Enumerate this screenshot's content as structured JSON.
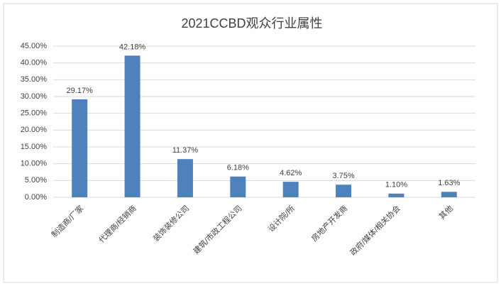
{
  "chart_data": {
    "type": "bar",
    "title": "2021CCBD观众行业属性",
    "categories": [
      "制造商/厂家",
      "代理商/经销商",
      "装饰装修公司",
      "建筑/市政工程公司",
      "设计院/所",
      "房地产开发商",
      "政府/媒体/相关协会",
      "其他"
    ],
    "values": [
      29.17,
      42.18,
      11.37,
      6.18,
      4.62,
      3.75,
      1.1,
      1.63
    ],
    "value_labels": [
      "29.17%",
      "42.18%",
      "11.37%",
      "6.18%",
      "4.62%",
      "3.75%",
      "1.10%",
      "1.63%"
    ],
    "color": "#4f81bd",
    "ylim": [
      0,
      45
    ],
    "yticks": [
      {
        "value": 0,
        "label": "0.00%"
      },
      {
        "value": 5,
        "label": "5.00%"
      },
      {
        "value": 10,
        "label": "10.00%"
      },
      {
        "value": 15,
        "label": "15.00%"
      },
      {
        "value": 20,
        "label": "20.00%"
      },
      {
        "value": 25,
        "label": "25.00%"
      },
      {
        "value": 30,
        "label": "30.00%"
      },
      {
        "value": 35,
        "label": "35.00%"
      },
      {
        "value": 40,
        "label": "40.00%"
      },
      {
        "value": 45,
        "label": "45.00%"
      }
    ],
    "grid": true
  }
}
